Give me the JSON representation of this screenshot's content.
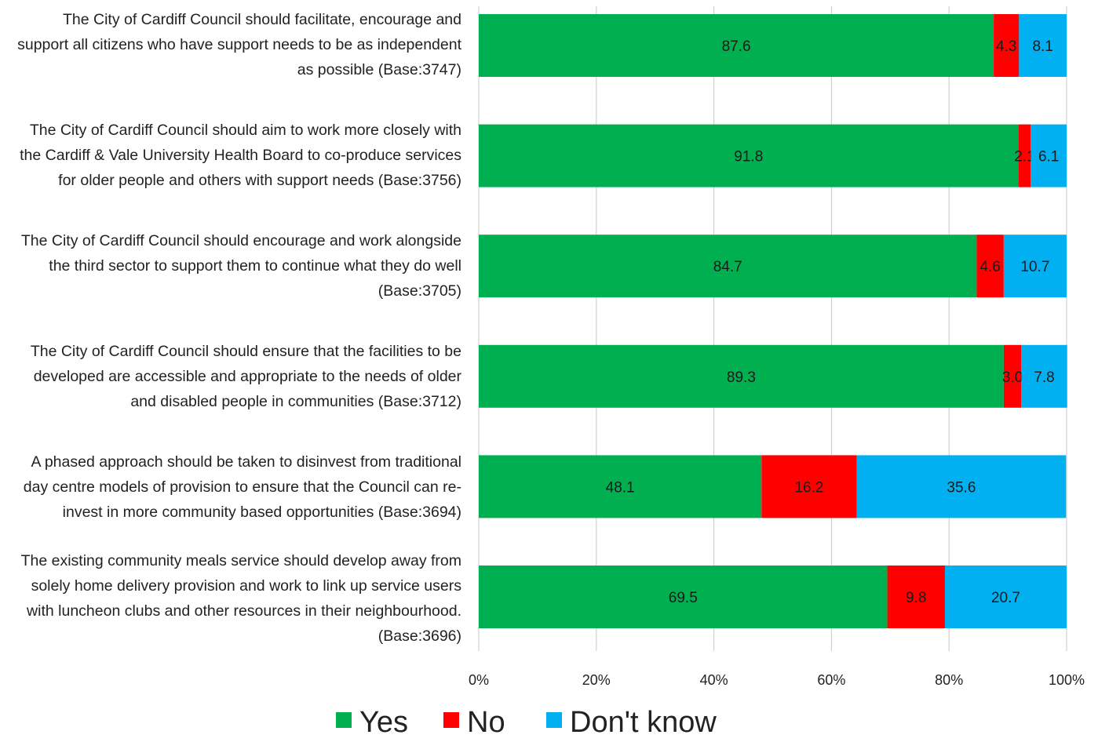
{
  "chart_data": {
    "type": "bar",
    "orientation": "horizontal",
    "stacked": true,
    "categories": [
      "The City of Cardiff Council should facilitate, encourage and support all citizens who have support needs to be as independent as possible (Base:3747)",
      "The City of Cardiff Council should aim to work more closely with the Cardiff & Vale University Health Board to co-produce services for older people and others with support needs (Base:3756)",
      "The City of Cardiff Council should encourage and work alongside the third sector to support them to continue what they do well (Base:3705)",
      "The City of Cardiff Council should ensure that the facilities to be developed are accessible and appropriate to the needs of older and disabled people in communities (Base:3712)",
      "A phased approach should be taken to disinvest from traditional day centre models of provision to ensure that the Council can re-invest in more community based opportunities (Base:3694)",
      "The existing community meals service should develop away from solely home delivery provision and work to link up service users with luncheon clubs and other resources in their neighbourhood. (Base:3696)"
    ],
    "category_lines": [
      [
        "The City of Cardiff Council should facilitate, encourage and",
        "support all citizens who have support needs to be as independent",
        "as possible (Base:3747)"
      ],
      [
        "The City of Cardiff Council should aim to work more closely with",
        "the Cardiff & Vale University Health Board to co-produce services",
        "for older people and others with support needs (Base:3756)"
      ],
      [
        "The City of Cardiff Council should encourage and work alongside",
        "the third sector to support them to continue what they do well",
        "(Base:3705)"
      ],
      [
        "The City of Cardiff Council should ensure that the facilities to be",
        "developed are accessible and appropriate to the needs of older",
        "and disabled people in communities (Base:3712)"
      ],
      [
        "A phased approach should be taken to disinvest from traditional",
        "day centre models of provision to ensure that the Council can re-",
        "invest in more community based opportunities (Base:3694)"
      ],
      [
        "The existing community meals service should develop away from",
        "solely home delivery provision and work to link up service users",
        "with luncheon clubs and other resources in their neighbourhood.",
        "(Base:3696)"
      ]
    ],
    "series": [
      {
        "name": "Yes",
        "color": "#00b050",
        "values": [
          87.6,
          91.8,
          84.7,
          89.3,
          48.1,
          69.5
        ],
        "labels": [
          "87.6",
          "91.8",
          "84.7",
          "89.3",
          "48.1",
          "69.5"
        ]
      },
      {
        "name": "No",
        "color": "#ff0000",
        "values": [
          4.3,
          2.1,
          4.6,
          3.0,
          16.2,
          9.8
        ],
        "labels": [
          "4.3",
          "2.1",
          "4.6",
          "3.0",
          "16.2",
          "9.8"
        ]
      },
      {
        "name": "Don't know",
        "color": "#00b0f0",
        "values": [
          8.1,
          6.1,
          10.7,
          7.8,
          35.6,
          20.7
        ],
        "labels": [
          "8.1",
          "6.1",
          "10.7",
          "7.8",
          "35.6",
          "20.7"
        ]
      }
    ],
    "xlim": [
      0,
      100
    ],
    "x_ticks": [
      "0%",
      "20%",
      "40%",
      "60%",
      "80%",
      "100%"
    ],
    "grid": "vertical",
    "legend_position": "bottom",
    "title": "",
    "xlabel": "",
    "ylabel": ""
  }
}
